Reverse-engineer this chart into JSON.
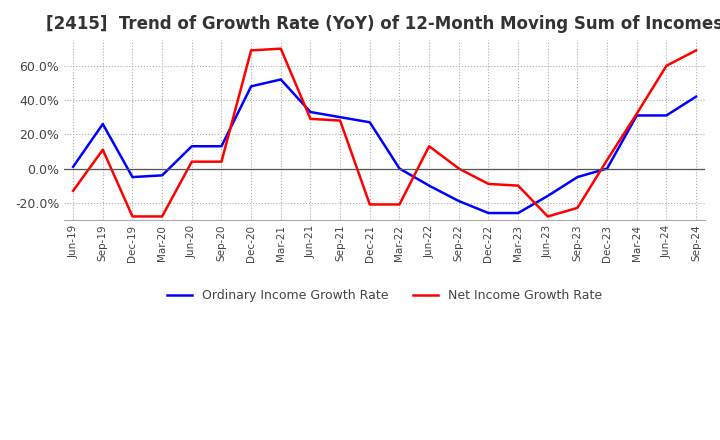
{
  "title": "[2415]  Trend of Growth Rate (YoY) of 12-Month Moving Sum of Incomes",
  "title_fontsize": 12,
  "ylim": [
    -30,
    75
  ],
  "yticks": [
    -20.0,
    0.0,
    20.0,
    40.0,
    60.0
  ],
  "background_color": "#ffffff",
  "grid_color": "#aaaaaa",
  "legend_labels": [
    "Ordinary Income Growth Rate",
    "Net Income Growth Rate"
  ],
  "line_colors": [
    "#0000ff",
    "#ff0000"
  ],
  "x_labels": [
    "Jun-19",
    "Sep-19",
    "Dec-19",
    "Mar-20",
    "Jun-20",
    "Sep-20",
    "Dec-20",
    "Mar-21",
    "Jun-21",
    "Sep-21",
    "Dec-21",
    "Mar-22",
    "Jun-22",
    "Sep-22",
    "Dec-22",
    "Mar-23",
    "Jun-23",
    "Sep-23",
    "Dec-23",
    "Mar-24",
    "Jun-24",
    "Sep-24"
  ],
  "ordinary_income": [
    1.0,
    26.0,
    -5.0,
    -4.0,
    13.0,
    13.0,
    48.0,
    52.0,
    33.0,
    30.0,
    27.0,
    0.0,
    -10.0,
    -19.0,
    -26.0,
    -26.0,
    -16.0,
    -5.0,
    0.0,
    31.0,
    31.0,
    42.0
  ],
  "net_income": [
    -13.0,
    11.0,
    -28.0,
    -28.0,
    4.0,
    4.0,
    69.0,
    70.0,
    29.0,
    28.0,
    -21.0,
    -21.0,
    13.0,
    0.0,
    -9.0,
    -10.0,
    -28.0,
    -23.0,
    5.0,
    32.0,
    60.0,
    69.0
  ]
}
